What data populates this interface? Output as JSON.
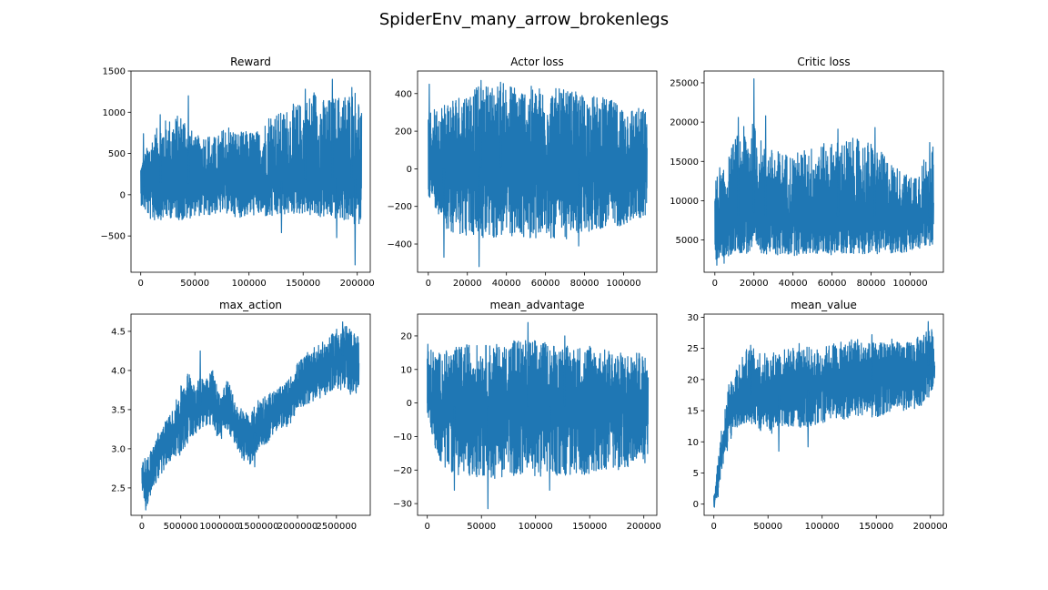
{
  "figure": {
    "title": "SpiderEnv_many_arrow_brokenlegs",
    "line_color": "#1f77b4"
  },
  "chart_data": [
    {
      "type": "line",
      "title": "Reward",
      "xlim": [
        -9000,
        212000
      ],
      "ylim": [
        -940,
        1500
      ],
      "xticks": [
        0,
        50000,
        100000,
        150000,
        200000
      ],
      "xtick_labels": [
        "0",
        "50000",
        "100000",
        "150000",
        "200000"
      ],
      "yticks": [
        -500,
        0,
        500,
        1000,
        1500
      ],
      "ytick_labels": [
        "−500",
        "0",
        "500",
        "1000",
        "1500"
      ],
      "x": [
        0,
        10000,
        20000,
        30000,
        40000,
        50000,
        60000,
        70000,
        80000,
        90000,
        100000,
        110000,
        120000,
        130000,
        140000,
        150000,
        160000,
        170000,
        180000,
        190000,
        200000,
        204000
      ],
      "lower": [
        -120,
        -330,
        -300,
        -280,
        -330,
        -250,
        -270,
        -230,
        -230,
        -280,
        -260,
        -250,
        -300,
        -250,
        -240,
        -230,
        -280,
        -280,
        -300,
        -320,
        -400,
        -300
      ],
      "upper": [
        380,
        720,
        900,
        950,
        1000,
        700,
        760,
        700,
        880,
        760,
        780,
        780,
        1040,
        1000,
        1100,
        1120,
        1300,
        1150,
        1200,
        1250,
        1300,
        1040
      ],
      "peaks": [
        [
          2500,
          740
        ],
        [
          18000,
          970
        ],
        [
          44000,
          1200
        ],
        [
          152000,
          1280
        ],
        [
          177000,
          1400
        ],
        [
          195000,
          1300
        ]
      ],
      "dips": [
        [
          130000,
          -460
        ],
        [
          181000,
          -520
        ],
        [
          198000,
          -850
        ]
      ],
      "center": [
        100,
        120,
        140,
        130,
        150,
        120,
        130,
        120,
        140,
        130,
        140,
        140,
        150,
        160,
        170,
        180,
        200,
        190,
        200,
        200,
        210,
        180
      ]
    },
    {
      "type": "line",
      "title": "Actor loss",
      "xlim": [
        -5500,
        117000
      ],
      "ylim": [
        -550,
        520
      ],
      "xticks": [
        0,
        20000,
        40000,
        60000,
        80000,
        100000
      ],
      "xtick_labels": [
        "0",
        "20000",
        "40000",
        "60000",
        "80000",
        "100000"
      ],
      "yticks": [
        -400,
        -200,
        0,
        200,
        400
      ],
      "ytick_labels": [
        "−400",
        "−200",
        "0",
        "200",
        "400"
      ],
      "x": [
        0,
        10000,
        20000,
        30000,
        40000,
        50000,
        60000,
        70000,
        80000,
        90000,
        100000,
        112000
      ],
      "lower": [
        -140,
        -330,
        -360,
        -380,
        -360,
        -370,
        -370,
        -380,
        -340,
        -320,
        -300,
        -250
      ],
      "upper": [
        300,
        380,
        420,
        450,
        460,
        440,
        440,
        420,
        400,
        380,
        340,
        320
      ],
      "peaks": [
        [
          500,
          450
        ],
        [
          27000,
          470
        ],
        [
          37000,
          460
        ]
      ],
      "dips": [
        [
          8000,
          -470
        ],
        [
          26000,
          -520
        ],
        [
          77000,
          -410
        ]
      ],
      "center": [
        0,
        0,
        10,
        10,
        10,
        0,
        0,
        10,
        0,
        10,
        0,
        10
      ]
    },
    {
      "type": "line",
      "title": "Critic loss",
      "xlim": [
        -5500,
        117000
      ],
      "ylim": [
        900,
        26500
      ],
      "xticks": [
        0,
        20000,
        40000,
        60000,
        80000,
        100000
      ],
      "xtick_labels": [
        "0",
        "20000",
        "40000",
        "60000",
        "80000",
        "100000"
      ],
      "yticks": [
        5000,
        10000,
        15000,
        20000,
        25000
      ],
      "ytick_labels": [
        "5000",
        "10000",
        "15000",
        "20000",
        "25000"
      ],
      "x": [
        0,
        5000,
        10000,
        15000,
        20000,
        25000,
        30000,
        40000,
        50000,
        60000,
        70000,
        80000,
        90000,
        100000,
        112000
      ],
      "lower": [
        2500,
        1800,
        3500,
        3200,
        3200,
        3300,
        3000,
        3000,
        3200,
        3100,
        3300,
        3200,
        3300,
        3300,
        4500
      ],
      "upper": [
        13000,
        14000,
        18000,
        19500,
        20000,
        17000,
        16500,
        16000,
        17000,
        17500,
        18000,
        17500,
        15000,
        13000,
        17000
      ],
      "peaks": [
        [
          2500,
          14200
        ],
        [
          12000,
          20600
        ],
        [
          20000,
          25500
        ],
        [
          26000,
          20800
        ],
        [
          63000,
          19100
        ],
        [
          82000,
          19300
        ],
        [
          110000,
          17400
        ]
      ],
      "dips": [
        [
          1000,
          1800
        ]
      ],
      "center": [
        7000,
        7500,
        8000,
        8200,
        8500,
        8000,
        7800,
        7800,
        8000,
        8000,
        8200,
        8000,
        7800,
        7500,
        8000
      ]
    },
    {
      "type": "line",
      "title": "max_action",
      "xlim": [
        -140000,
        2935000
      ],
      "ylim": [
        2.15,
        4.72
      ],
      "xticks": [
        0,
        500000,
        1000000,
        1500000,
        2000000,
        2500000
      ],
      "xtick_labels": [
        "0",
        "500000",
        "1000000",
        "1500000",
        "2000000",
        "2500000"
      ],
      "yticks": [
        2.5,
        3.0,
        3.5,
        4.0,
        4.5
      ],
      "ytick_labels": [
        "2.5",
        "3.0",
        "3.5",
        "4.0",
        "4.5"
      ],
      "x": [
        0,
        50000,
        100000,
        200000,
        300000,
        400000,
        500000,
        600000,
        700000,
        800000,
        900000,
        1000000,
        1100000,
        1200000,
        1300000,
        1400000,
        1500000,
        1600000,
        1700000,
        1800000,
        1900000,
        2000000,
        2100000,
        2200000,
        2300000,
        2400000,
        2500000,
        2600000,
        2700000,
        2790000
      ],
      "lower": [
        2.5,
        2.25,
        2.35,
        2.6,
        2.75,
        2.9,
        2.9,
        3.1,
        3.2,
        3.3,
        3.25,
        3.1,
        3.2,
        3.05,
        2.85,
        2.8,
        3.0,
        3.05,
        3.2,
        3.25,
        3.3,
        3.5,
        3.55,
        3.6,
        3.65,
        3.7,
        3.75,
        3.75,
        3.65,
        3.7
      ],
      "upper": [
        2.85,
        2.9,
        2.95,
        3.2,
        3.35,
        3.5,
        3.8,
        4.0,
        3.85,
        3.95,
        4.05,
        3.7,
        3.9,
        3.6,
        3.5,
        3.45,
        3.65,
        3.7,
        3.75,
        3.8,
        3.9,
        4.1,
        4.2,
        4.3,
        4.35,
        4.4,
        4.55,
        4.6,
        4.5,
        4.45
      ],
      "peaks": [
        [
          750000,
          4.25
        ],
        [
          2580000,
          4.62
        ]
      ],
      "dips": [
        [
          50000,
          2.22
        ],
        [
          1450000,
          2.77
        ]
      ],
      "center": [
        2.7,
        2.55,
        2.65,
        2.9,
        3.05,
        3.2,
        3.35,
        3.55,
        3.5,
        3.6,
        3.65,
        3.4,
        3.55,
        3.3,
        3.15,
        3.1,
        3.3,
        3.35,
        3.45,
        3.5,
        3.6,
        3.8,
        3.85,
        3.95,
        4.0,
        4.05,
        4.15,
        4.2,
        4.1,
        4.05
      ]
    },
    {
      "type": "line",
      "title": "mean_advantage",
      "xlim": [
        -9000,
        212000
      ],
      "ylim": [
        -33.5,
        26.5
      ],
      "xticks": [
        0,
        50000,
        100000,
        150000,
        200000
      ],
      "xtick_labels": [
        "0",
        "50000",
        "100000",
        "150000",
        "200000"
      ],
      "yticks": [
        -30,
        -20,
        -10,
        0,
        10,
        20
      ],
      "ytick_labels": [
        "−30",
        "−20",
        "−10",
        "0",
        "10",
        "20"
      ],
      "x": [
        0,
        10000,
        20000,
        30000,
        40000,
        50000,
        60000,
        70000,
        80000,
        90000,
        100000,
        110000,
        120000,
        130000,
        140000,
        150000,
        160000,
        170000,
        180000,
        190000,
        200000,
        204000
      ],
      "lower": [
        -3,
        -18,
        -20,
        -22,
        -22,
        -22,
        -23,
        -22,
        -22,
        -21,
        -22,
        -22,
        -22,
        -22,
        -22,
        -21,
        -20,
        -20,
        -20,
        -19,
        -19,
        -15
      ],
      "upper": [
        17,
        15,
        16,
        17,
        18,
        17,
        18,
        17,
        20,
        19,
        19,
        18,
        18,
        17,
        17,
        18,
        16,
        16,
        15,
        15,
        15,
        10
      ],
      "peaks": [
        [
          500,
          17.5
        ],
        [
          93000,
          24
        ],
        [
          127000,
          20
        ]
      ],
      "dips": [
        [
          25000,
          -26
        ],
        [
          56000,
          -31.5
        ],
        [
          113000,
          -26
        ]
      ],
      "center": [
        0,
        -1,
        -1,
        -1,
        -1,
        -1,
        -1,
        -1,
        -1,
        -1,
        -1,
        -1,
        -1,
        -1,
        -1,
        -1,
        -1,
        -1,
        -1,
        -1,
        -1,
        -1
      ]
    },
    {
      "type": "line",
      "title": "mean_value",
      "xlim": [
        -9000,
        212000
      ],
      "ylim": [
        -1.8,
        30.5
      ],
      "xticks": [
        0,
        50000,
        100000,
        150000,
        200000
      ],
      "xtick_labels": [
        "0",
        "50000",
        "100000",
        "150000",
        "200000"
      ],
      "yticks": [
        0,
        5,
        10,
        15,
        20,
        25,
        30
      ],
      "ytick_labels": [
        "0",
        "5",
        "10",
        "15",
        "20",
        "25",
        "30"
      ],
      "x": [
        0,
        2000,
        4000,
        6000,
        8000,
        10000,
        12000,
        15000,
        20000,
        25000,
        30000,
        40000,
        50000,
        60000,
        70000,
        80000,
        90000,
        100000,
        110000,
        120000,
        130000,
        140000,
        150000,
        160000,
        170000,
        180000,
        190000,
        200000,
        204000
      ],
      "lower": [
        -0.5,
        0,
        1,
        3,
        5,
        6.5,
        8,
        10,
        12,
        12.5,
        13,
        12,
        11,
        12,
        12.5,
        12,
        12.5,
        13,
        13.5,
        13.5,
        14,
        14,
        14,
        14.5,
        15,
        15,
        15.5,
        17.5,
        19
      ],
      "upper": [
        2,
        4,
        8,
        11,
        13,
        15,
        18,
        20,
        22,
        24,
        25,
        25,
        24,
        25,
        25,
        26,
        25,
        25,
        26,
        26,
        27,
        26,
        26,
        27,
        26,
        26,
        27,
        29,
        26
      ],
      "peaks": [
        [
          34000,
          25.5
        ],
        [
          146000,
          27.2
        ],
        [
          198000,
          29.3
        ]
      ],
      "dips": [
        [
          500,
          -0.5
        ],
        [
          60000,
          8.5
        ],
        [
          87000,
          9.2
        ]
      ],
      "center": [
        0.5,
        2,
        4,
        7,
        9,
        11,
        13,
        15,
        16.5,
        17,
        17.5,
        17.5,
        17,
        17.5,
        18,
        18,
        18.5,
        19,
        19.5,
        19.5,
        20,
        20,
        20,
        20.5,
        20.5,
        20.5,
        21,
        22.5,
        22
      ]
    }
  ]
}
